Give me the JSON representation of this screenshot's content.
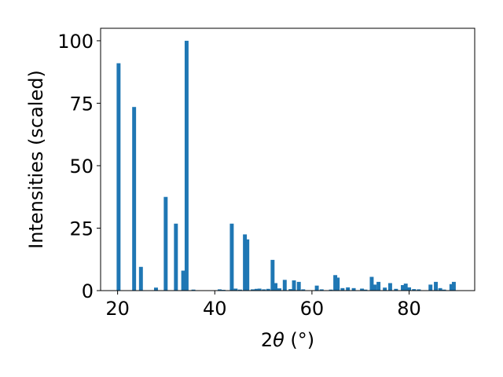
{
  "chart_data": {
    "type": "bar",
    "title": "",
    "xlabel_parts": {
      "prefix": "2",
      "symbol": "θ",
      "suffix": " (°)"
    },
    "ylabel": "Intensities (scaled)",
    "xlim": [
      16.5,
      93.5
    ],
    "ylim": [
      0,
      105
    ],
    "xticks": [
      20,
      40,
      60,
      80
    ],
    "yticks": [
      0,
      25,
      50,
      75,
      100
    ],
    "bar_width": 0.8,
    "bar_color": "#1f77b4",
    "grid": false,
    "x": [
      20.2,
      23.4,
      24.8,
      27.9,
      29.9,
      32.0,
      33.5,
      34.2,
      35.6,
      41.0,
      41.8,
      43.5,
      44.3,
      45.2,
      46.2,
      46.7,
      47.8,
      48.6,
      49.2,
      50.1,
      51.0,
      51.9,
      52.5,
      53.3,
      54.4,
      55.6,
      56.3,
      57.3,
      58.2,
      61.0,
      62.0,
      63.9,
      64.8,
      65.3,
      66.3,
      67.4,
      68.6,
      70.3,
      71.0,
      72.3,
      72.9,
      73.7,
      75.0,
      76.1,
      77.3,
      78.7,
      79.3,
      80.0,
      81.0,
      82.0,
      84.4,
      85.5,
      86.4,
      87.2,
      88.7,
      89.2
    ],
    "values": [
      91,
      73.5,
      9.5,
      1.2,
      37.5,
      26.8,
      8.0,
      100,
      0.4,
      0.5,
      0.3,
      26.8,
      0.8,
      0.4,
      22.5,
      20.5,
      0.5,
      0.7,
      0.8,
      0.5,
      0.7,
      12.3,
      3.0,
      0.9,
      4.3,
      0.6,
      4.1,
      3.5,
      0.5,
      2.0,
      0.5,
      0.4,
      6.2,
      5.2,
      1.0,
      1.3,
      1.0,
      0.8,
      0.4,
      5.5,
      2.4,
      3.5,
      1.2,
      3.0,
      0.7,
      2.2,
      2.8,
      1.3,
      0.6,
      0.5,
      2.4,
      3.5,
      1.0,
      0.4,
      2.6,
      3.5
    ]
  }
}
